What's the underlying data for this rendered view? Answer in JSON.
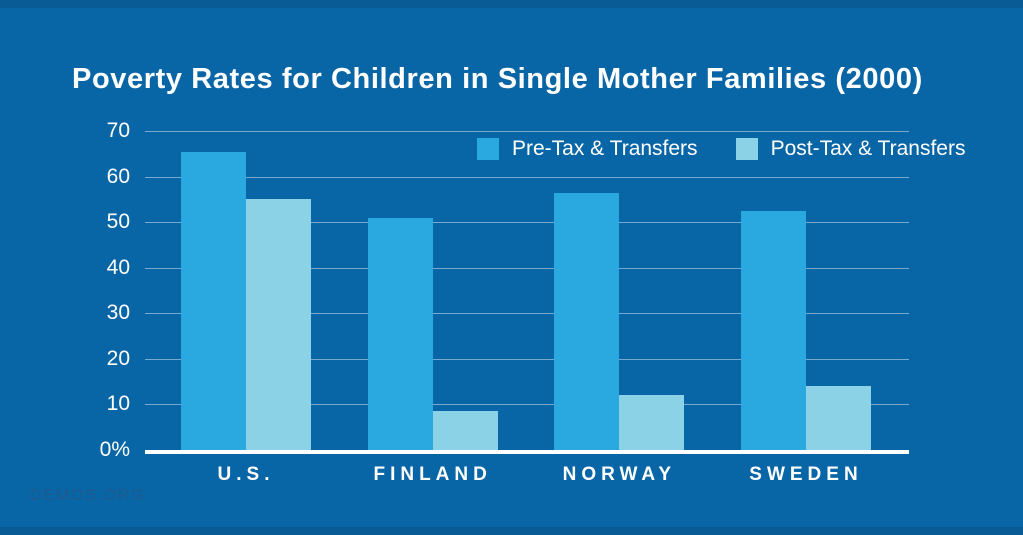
{
  "poster": {
    "title": "Poverty Rates for Children in Single Mother Families (2000)",
    "footer": "DEMOS.ORG"
  },
  "colors": {
    "background": "#0966A6",
    "pre_tax_bar": "#2AA9E1",
    "post_tax_bar": "#8CD2E7",
    "gridline": "rgba(255,255,255,0.45)",
    "axis_line": "#FFFFFF",
    "title_text": "#FFFFFF",
    "footer_text": "#1E5A8F"
  },
  "chart_data": {
    "type": "bar",
    "title": "Poverty Rates for Children in Single Mother Families (2000)",
    "categories": [
      "U.S.",
      "FINLAND",
      "NORWAY",
      "SWEDEN"
    ],
    "series": [
      {
        "name": "Pre-Tax & Transfers",
        "color": "#2AA9E1",
        "values": [
          65.5,
          51,
          56.5,
          52.5
        ]
      },
      {
        "name": "Post-Tax & Transfers",
        "color": "#8CD2E7",
        "values": [
          55,
          8.5,
          12,
          14
        ]
      }
    ],
    "unit": "%",
    "xlabel": "",
    "ylabel": "",
    "ylim": [
      0,
      70
    ],
    "yticks": [
      {
        "label": "70",
        "value": 70
      },
      {
        "label": "60",
        "value": 60
      },
      {
        "label": "50",
        "value": 50
      },
      {
        "label": "40",
        "value": 40
      },
      {
        "label": "30",
        "value": 30
      },
      {
        "label": "20",
        "value": 20
      },
      {
        "label": "10",
        "value": 10
      },
      {
        "label": "0%",
        "value": 0
      }
    ],
    "grid": true,
    "legend_position": "top-inside"
  }
}
